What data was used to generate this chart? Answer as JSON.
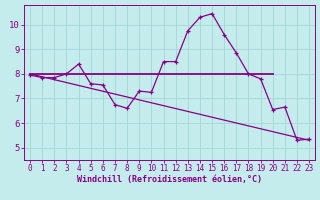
{
  "xlabel": "Windchill (Refroidissement éolien,°C)",
  "xlim": [
    -0.5,
    23.5
  ],
  "ylim": [
    4.5,
    10.8
  ],
  "yticks": [
    5,
    6,
    7,
    8,
    9,
    10
  ],
  "xticks": [
    0,
    1,
    2,
    3,
    4,
    5,
    6,
    7,
    8,
    9,
    10,
    11,
    12,
    13,
    14,
    15,
    16,
    17,
    18,
    19,
    20,
    21,
    22,
    23
  ],
  "background_color": "#c5eced",
  "grid_color": "#a8d8d8",
  "line_color": "#880088",
  "data_x": [
    0,
    1,
    2,
    3,
    4,
    5,
    6,
    7,
    8,
    9,
    10,
    11,
    12,
    13,
    14,
    15,
    16,
    17,
    18,
    19,
    20,
    21,
    22,
    23
  ],
  "data_y": [
    7.95,
    7.85,
    7.85,
    8.0,
    8.4,
    7.6,
    7.55,
    6.75,
    6.6,
    7.3,
    7.25,
    8.5,
    8.5,
    9.75,
    10.3,
    10.45,
    9.6,
    8.85,
    8.0,
    7.8,
    6.55,
    6.65,
    5.3,
    5.35
  ],
  "horiz_line_x": [
    0,
    20
  ],
  "horiz_line_y": [
    8.0,
    8.0
  ],
  "diag_line_x": [
    0,
    23
  ],
  "diag_line_y": [
    8.0,
    5.3
  ],
  "font_size_xlabel": 6.0,
  "font_size_ytick": 6.5,
  "font_size_xtick": 5.5
}
